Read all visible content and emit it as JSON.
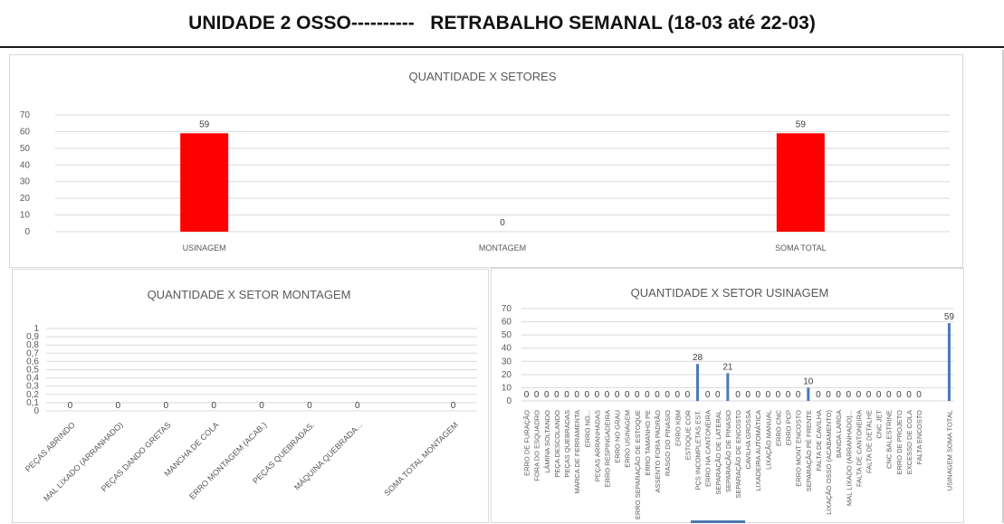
{
  "header": {
    "title": "UNIDADE 2 OSSO----------   RETRABALHO SEMANAL (18-03 até 22-03)"
  },
  "colors": {
    "red_bar": "#ff0000",
    "blue_bar": "#4a7ab8",
    "grid": "#d9d9d9",
    "text": "#595959"
  },
  "chart_data": [
    {
      "type": "bar",
      "title": "QUANTIDADE X SETORES",
      "categories": [
        "USINAGEM",
        "MONTAGEM",
        "SOMA TOTAL"
      ],
      "values": [
        59,
        0,
        59
      ],
      "ylim": [
        0,
        70
      ],
      "yticks": [
        0,
        10,
        20,
        30,
        40,
        50,
        60,
        70
      ],
      "grid": true,
      "color": "#ff0000",
      "data_labels": true
    },
    {
      "type": "bar",
      "title": "QUANTIDADE X SETOR MONTAGEM",
      "categories": [
        "PEÇAS ABRINDO",
        "MAL LIXADO (ARRANHADO)",
        "PEÇAS DANDO GRETAS",
        "MANCHA DE COLA",
        "ERRO MONTAGEM  (ACAB.)",
        "PEÇAS QUEBRADAS.",
        "MÁQUINA QUEBRADA...",
        "",
        "SOMA TOTAL MONTAGEM"
      ],
      "values": [
        0,
        0,
        0,
        0,
        0,
        0,
        0,
        null,
        0
      ],
      "ylim": [
        0,
        1
      ],
      "yticks": [
        "0",
        "0,1",
        "0,2",
        "0,3",
        "0,4",
        "0,5",
        "0,6",
        "0,7",
        "0,8",
        "0,9",
        "1"
      ],
      "grid": true,
      "data_labels": true
    },
    {
      "type": "bar",
      "title": "QUANTIDADE X SETOR USINAGEM",
      "categories": [
        "ERRO DE FURAÇÃO",
        "FORA DO ESQUADRO",
        "LÂMINA SOLTANDO",
        "PEÇA DESCOLANDO",
        "PEÇAS QUEBRADAS",
        "MARCA DE FERRAMENTA",
        "ERRO NO...",
        "PEÇAS ARRANHADAS",
        "ERRO RESPINGADEIRA",
        "ERRO NO GRAU",
        "ERRO USINAGEM",
        "ERRO SEPARAÇÃO DE ESTOQUE",
        "ERRO TAMANHO PE",
        "ASSENTO FORA PADRÃO",
        "RASGO DO PINASIO",
        "ERRO KBM",
        "ESTOQUE COR",
        "PÇS INCOMPLETAS EST.",
        "ERRO NA CANTONEIRA",
        "SEPARAÇÃO DE LATERAL",
        "SEPARAÇÃO DE PINASIO",
        "SEPARAÇÃO DE ENCOSTO",
        "CAVILHA GROSSA",
        "LIXADEIRA AUTOMÁTICA",
        "LIXAÇÃO MANUAL",
        "ERRO CNC",
        "ERRO PCP",
        "ERRO MONT ENCOSTO",
        "SEPARAÇÃO PÉ FRENTE",
        "FALTA DE CAVILHA",
        "LIXAÇÃO OSSO (ACABAMENTO)",
        "BANDA LARGA",
        "MAL LIXADO (ARRANHADO)...",
        "FALTA DE CANTONEIRA",
        "FALTA DE DETALHE",
        "CNC JET",
        "CNC BALESTRINE",
        "ERRO DE PROJETO",
        "EXCESSO DE COLA",
        "FALTA ENCOSTO",
        "",
        "",
        "USINAGEM SOMA TOTAL"
      ],
      "values": [
        0,
        0,
        0,
        0,
        0,
        0,
        0,
        0,
        0,
        0,
        0,
        0,
        0,
        0,
        0,
        0,
        0,
        28,
        0,
        0,
        21,
        0,
        0,
        0,
        0,
        0,
        0,
        0,
        10,
        0,
        0,
        0,
        0,
        0,
        0,
        0,
        0,
        0,
        0,
        0,
        null,
        null,
        59
      ],
      "ylim": [
        0,
        70
      ],
      "yticks": [
        0,
        10,
        20,
        30,
        40,
        50,
        60,
        70
      ],
      "grid": true,
      "color": "#4a7ab8",
      "data_labels": true
    }
  ]
}
